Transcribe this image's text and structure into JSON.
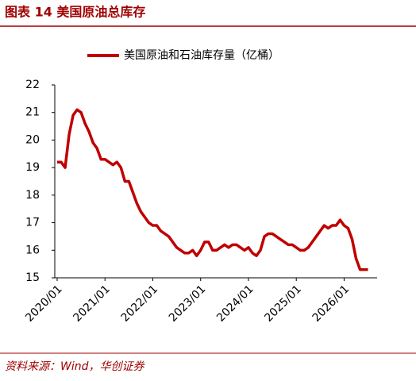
{
  "chart_data": {
    "type": "line",
    "title": "图表 14 美国原油总库存",
    "source": "资料来源：Wind，华创证券",
    "x": [
      "2020/01",
      "2020/02",
      "2020/03",
      "2020/04",
      "2020/05",
      "2020/06",
      "2020/07",
      "2020/08",
      "2020/09",
      "2020/10",
      "2020/11",
      "2020/12",
      "2021/01",
      "2021/02",
      "2021/03",
      "2021/04",
      "2021/05",
      "2021/06",
      "2021/07",
      "2021/08",
      "2021/09",
      "2021/10",
      "2021/11",
      "2021/12",
      "2022/01",
      "2022/02",
      "2022/03",
      "2022/04",
      "2022/05",
      "2022/06",
      "2022/07",
      "2022/08",
      "2022/09",
      "2022/10",
      "2022/11",
      "2022/12",
      "2023/01",
      "2023/02",
      "2023/03",
      "2023/04",
      "2023/05",
      "2023/06",
      "2023/07",
      "2023/08",
      "2023/09",
      "2023/10",
      "2023/11",
      "2023/12",
      "2024/01",
      "2024/02",
      "2024/03",
      "2024/04",
      "2024/05",
      "2024/06",
      "2024/07",
      "2024/08",
      "2024/09",
      "2024/10",
      "2024/11",
      "2024/12",
      "2025/01",
      "2025/02",
      "2025/03",
      "2025/04",
      "2025/05",
      "2025/06",
      "2025/07",
      "2025/08",
      "2025/09",
      "2025/10",
      "2025/11",
      "2025/12",
      "2026/01",
      "2026/02",
      "2026/03",
      "2026/04",
      "2026/05",
      "2026/06",
      "2026/07"
    ],
    "series": [
      {
        "name": "美国原油和石油库存量（亿桶）",
        "color": "#c00000",
        "values": [
          19.2,
          19.2,
          19.0,
          20.2,
          20.9,
          21.1,
          21.0,
          20.6,
          20.3,
          19.9,
          19.7,
          19.3,
          19.3,
          19.2,
          19.1,
          19.2,
          19.0,
          18.5,
          18.5,
          18.1,
          17.7,
          17.4,
          17.2,
          17.0,
          16.9,
          16.9,
          16.7,
          16.6,
          16.5,
          16.3,
          16.1,
          16.0,
          15.9,
          15.9,
          16.0,
          15.8,
          16.0,
          16.3,
          16.3,
          16.0,
          16.0,
          16.1,
          16.2,
          16.1,
          16.2,
          16.2,
          16.1,
          16.0,
          16.1,
          15.9,
          15.8,
          16.0,
          16.5,
          16.6,
          16.6,
          16.5,
          16.4,
          16.3,
          16.2,
          16.2,
          16.1,
          16.0,
          16.0,
          16.1,
          16.3,
          16.5,
          16.7,
          16.9,
          16.8,
          16.9,
          16.9,
          17.1,
          16.9,
          16.8,
          16.4,
          15.7,
          15.3,
          15.3,
          15.3
        ]
      }
    ],
    "xticks": [
      "2020/01",
      "2021/01",
      "2022/01",
      "2023/01",
      "2024/01",
      "2025/01",
      "2026/01"
    ],
    "ylim": [
      15,
      22
    ],
    "yticks": [
      15,
      16,
      17,
      18,
      19,
      20,
      21,
      22
    ]
  }
}
